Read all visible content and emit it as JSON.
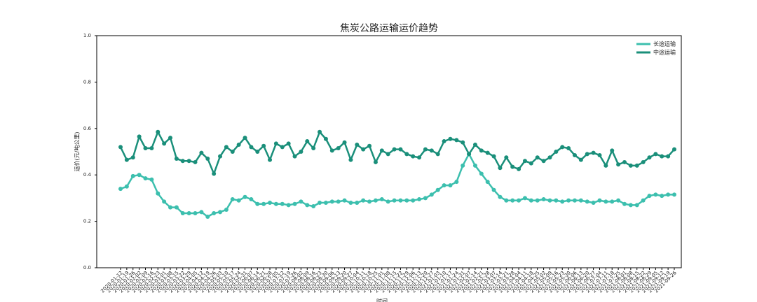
{
  "chart_data": {
    "type": "line",
    "title": "焦炭公路运输运价趋势",
    "xlabel": "时间",
    "ylabel": "运价(元/吨公里)",
    "legend": "upper right",
    "ylim": [
      0,
      1.0
    ],
    "yticks": [
      {
        "value": 0,
        "label": "0.0"
      },
      0.2,
      0.4,
      0.6,
      0.8,
      {
        "value": 1.0,
        "label": "1.0"
      }
    ],
    "categories": [
      "2020-01-12",
      "2020-01-19",
      "2020-01-26",
      "2020-02-02",
      "2020-02-09",
      "2020-02-16",
      "2020-02-23",
      "2020-03-01",
      "2020-03-08",
      "2020-03-15",
      "2020-03-22",
      "2020-03-29",
      "2020-04-05",
      "2020-04-12",
      "2020-04-19",
      "2020-04-26",
      "2020-05-03",
      "2020-05-10",
      "2020-05-17",
      "2020-05-24",
      "2020-05-31",
      "2020-06-07",
      "2020-06-14",
      "2020-06-21",
      "2020-06-28",
      "2020-07-05",
      "2020-07-12",
      "2020-07-19",
      "2020-07-26",
      "2020-08-02",
      "2020-08-09",
      "2020-08-16",
      "2020-08-23",
      "2020-08-30",
      "2020-09-06",
      "2020-09-13",
      "2020-09-20",
      "2020-09-27",
      "2020-10-04",
      "2020-10-11",
      "2020-10-18",
      "2020-10-25",
      "2020-11-01",
      "2020-11-08",
      "2020-11-15",
      "2020-11-22",
      "2020-11-29",
      "2020-12-06",
      "2020-12-13",
      "2020-12-20",
      "2020-12-27",
      "2021-01-03",
      "2021-01-10",
      "2021-01-17",
      "2021-01-24",
      "2021-01-31",
      "2021-02-07",
      "2021-02-14",
      "2021-02-21",
      "2021-02-28",
      "2021-03-07",
      "2021-03-14",
      "2021-03-21",
      "2021-03-28",
      "2021-04-04",
      "2021-04-11",
      "2021-04-18",
      "2021-04-25",
      "2021-05-02",
      "2021-05-09",
      "2021-05-16",
      "2021-05-23",
      "2021-05-30",
      "2021-06-06",
      "2021-06-13",
      "2021-06-20",
      "2021-06-27",
      "2021-07-04",
      "2021-07-11",
      "2021-07-18",
      "2021-07-25",
      "2021-08-01",
      "2021-08-08",
      "2021-08-15",
      "2021-08-22",
      "2021-08-29",
      "2021-09-05",
      "2021-09-12",
      "2021-09-19",
      "2021-09-26"
    ],
    "series": [
      {
        "name": "长途运输",
        "color": "#3cbfae",
        "values": [
          0.34,
          0.35,
          0.395,
          0.4,
          0.385,
          0.38,
          0.32,
          0.285,
          0.26,
          0.26,
          0.235,
          0.235,
          0.235,
          0.24,
          0.22,
          0.235,
          0.24,
          0.25,
          0.295,
          0.29,
          0.305,
          0.295,
          0.275,
          0.275,
          0.28,
          0.275,
          0.275,
          0.27,
          0.275,
          0.285,
          0.27,
          0.265,
          0.28,
          0.28,
          0.285,
          0.285,
          0.29,
          0.28,
          0.28,
          0.29,
          0.285,
          0.29,
          0.295,
          0.285,
          0.29,
          0.29,
          0.29,
          0.29,
          0.295,
          0.3,
          0.315,
          0.335,
          0.355,
          0.355,
          0.37,
          0.44,
          0.49,
          0.44,
          0.405,
          0.37,
          0.335,
          0.305,
          0.29,
          0.29,
          0.29,
          0.3,
          0.29,
          0.29,
          0.295,
          0.29,
          0.29,
          0.285,
          0.29,
          0.29,
          0.29,
          0.285,
          0.28,
          0.29,
          0.285,
          0.285,
          0.29,
          0.275,
          0.27,
          0.27,
          0.29,
          0.31,
          0.315,
          0.31,
          0.315,
          0.315
        ]
      },
      {
        "name": "中途运输",
        "color": "#1a8f7a",
        "values": [
          0.52,
          0.465,
          0.475,
          0.565,
          0.515,
          0.515,
          0.585,
          0.535,
          0.56,
          0.47,
          0.46,
          0.46,
          0.455,
          0.495,
          0.47,
          0.405,
          0.48,
          0.52,
          0.5,
          0.53,
          0.56,
          0.52,
          0.5,
          0.525,
          0.465,
          0.535,
          0.52,
          0.535,
          0.48,
          0.5,
          0.545,
          0.515,
          0.585,
          0.555,
          0.505,
          0.515,
          0.54,
          0.465,
          0.53,
          0.51,
          0.525,
          0.455,
          0.505,
          0.49,
          0.51,
          0.51,
          0.49,
          0.48,
          0.475,
          0.51,
          0.505,
          0.49,
          0.545,
          0.555,
          0.55,
          0.54,
          0.49,
          0.53,
          0.505,
          0.495,
          0.48,
          0.43,
          0.475,
          0.435,
          0.425,
          0.46,
          0.45,
          0.475,
          0.46,
          0.475,
          0.5,
          0.52,
          0.515,
          0.485,
          0.465,
          0.49,
          0.495,
          0.485,
          0.44,
          0.505,
          0.445,
          0.455,
          0.44,
          0.44,
          0.455,
          0.475,
          0.49,
          0.48,
          0.48,
          0.51
        ]
      }
    ]
  }
}
